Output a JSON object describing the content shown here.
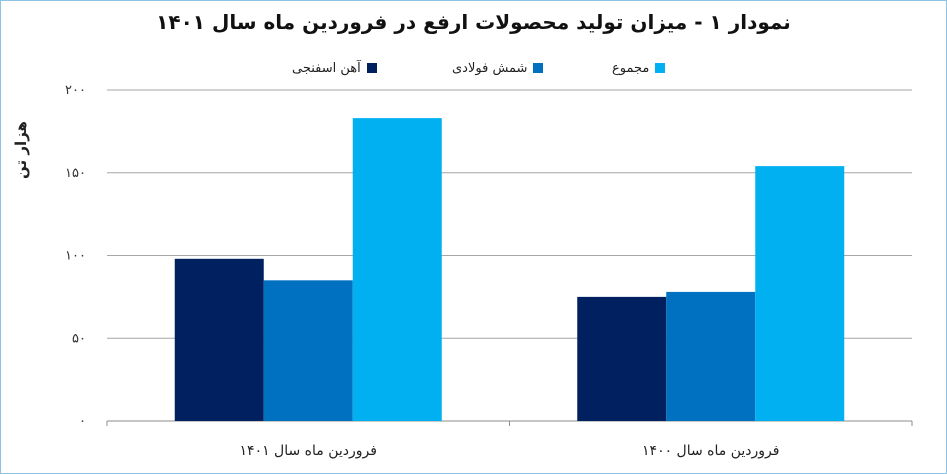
{
  "chart_data": {
    "type": "bar",
    "title": "نمودار ۱ - میزان تولید محصولات ارفع در فروردین ماه سال ۱۴۰۱",
    "ylabel": "هزار تن",
    "xlabel": "",
    "ylim": [
      0,
      200
    ],
    "yticks": [
      0,
      50,
      100,
      150,
      200
    ],
    "ytick_labels": [
      "۰",
      "۵۰",
      "۱۰۰",
      "۱۵۰",
      "۲۰۰"
    ],
    "categories": [
      "فروردین ماه سال ۱۴۰۱",
      "فروردین ماه سال ۱۴۰۰"
    ],
    "series": [
      {
        "name": "آهن اسفنجی",
        "color": "#002060",
        "values": [
          98,
          75
        ]
      },
      {
        "name": "شمش فولادی",
        "color": "#0070c0",
        "values": [
          85,
          78
        ]
      },
      {
        "name": "مجموع",
        "color": "#00b0f0",
        "values": [
          183,
          154
        ]
      }
    ],
    "legend_position": "top-center",
    "grid": true
  }
}
